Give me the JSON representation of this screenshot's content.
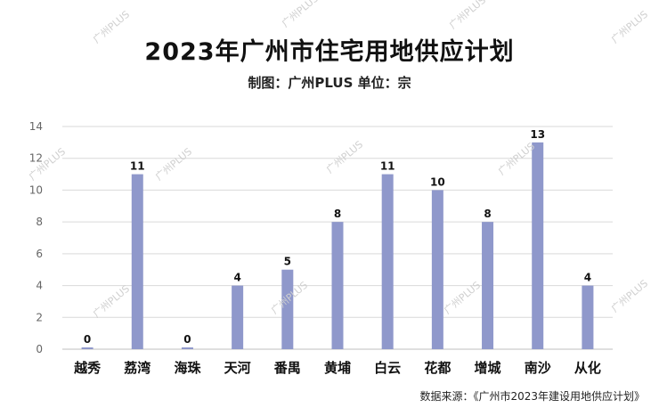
{
  "header": {
    "title": "2023年广州市住宅用地供应计划",
    "subtitle": "制图：广州PLUS   单位：宗"
  },
  "footer": {
    "source": "数据来源：《广州市2023年建设用地供应计划》"
  },
  "watermark": {
    "text": "广州PLUS"
  },
  "colors": {
    "bar": "#8f98cb",
    "grid": "#d9d9d9",
    "axis": "#bfbfbf"
  },
  "chart_data": {
    "type": "bar",
    "categories": [
      "越秀",
      "荔湾",
      "海珠",
      "天河",
      "番禺",
      "黄埔",
      "白云",
      "花都",
      "增城",
      "南沙",
      "从化"
    ],
    "values": [
      0,
      11,
      0,
      4,
      5,
      8,
      11,
      10,
      8,
      13,
      4
    ],
    "ylim": [
      0,
      14
    ],
    "yticks": [
      0,
      2,
      4,
      6,
      8,
      10,
      12,
      14
    ],
    "grid": true,
    "legend": "none"
  }
}
